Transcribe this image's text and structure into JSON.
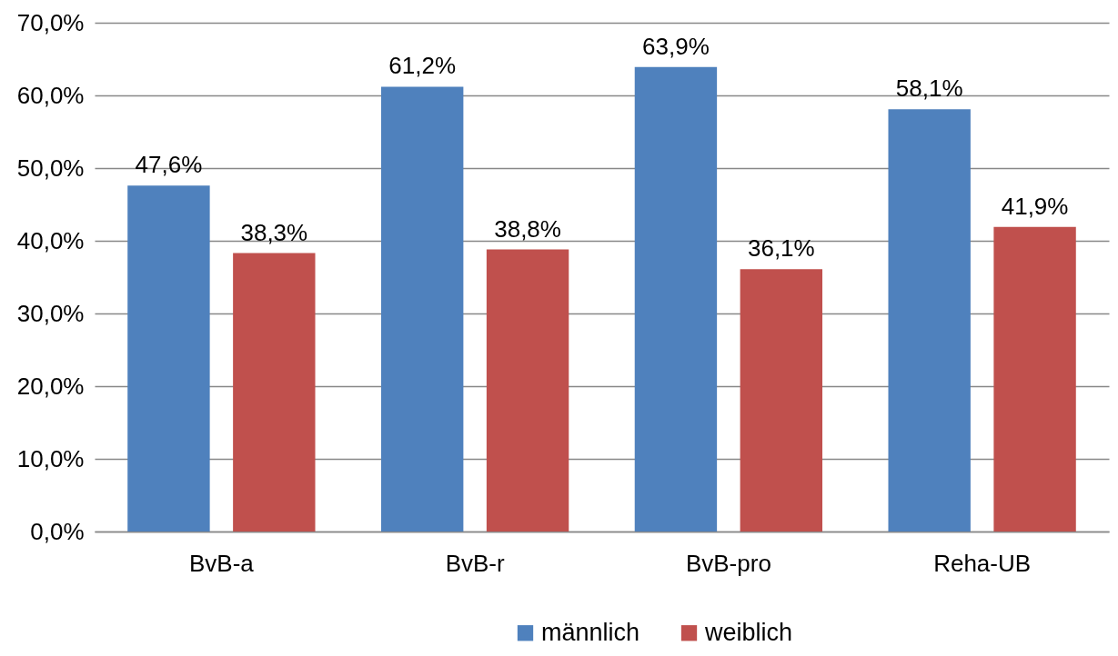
{
  "chart_data": {
    "type": "bar",
    "categories": [
      "BvB-a",
      "BvB-r",
      "BvB-pro",
      "Reha-UB"
    ],
    "series": [
      {
        "name": "männlich",
        "color": "#4f81bd",
        "values": [
          47.6,
          61.2,
          63.9,
          58.1
        ],
        "value_labels": [
          "47,6%",
          "61,2%",
          "63,9%",
          "58,1%"
        ]
      },
      {
        "name": "weiblich",
        "color": "#c0504d",
        "values": [
          38.3,
          38.8,
          36.1,
          41.9
        ],
        "value_labels": [
          "38,3%",
          "38,8%",
          "36,1%",
          "41,9%"
        ]
      }
    ],
    "ylim": [
      0,
      70
    ],
    "yticks": [
      {
        "value": 0,
        "label": "0,0%"
      },
      {
        "value": 10,
        "label": "10,0%"
      },
      {
        "value": 20,
        "label": "20,0%"
      },
      {
        "value": 30,
        "label": "30,0%"
      },
      {
        "value": 40,
        "label": "40,0%"
      },
      {
        "value": 50,
        "label": "50,0%"
      },
      {
        "value": 60,
        "label": "60,0%"
      },
      {
        "value": 70,
        "label": "70,0%"
      }
    ],
    "grid": "y",
    "legend": "bottom"
  }
}
